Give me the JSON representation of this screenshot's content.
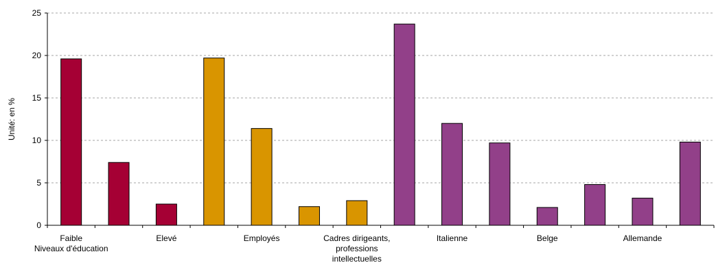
{
  "chart_data": {
    "type": "bar",
    "ylabel": "Unité: en %",
    "ylim": [
      0,
      25
    ],
    "yticks": [
      0,
      5,
      10,
      15,
      20,
      25
    ],
    "grid": true,
    "bars": [
      {
        "value": 19.6,
        "color": "#a50034"
      },
      {
        "value": 7.4,
        "color": "#a50034"
      },
      {
        "value": 2.5,
        "color": "#a50034"
      },
      {
        "value": 19.7,
        "color": "#d99500"
      },
      {
        "value": 11.4,
        "color": "#d99500"
      },
      {
        "value": 2.2,
        "color": "#d99500"
      },
      {
        "value": 2.9,
        "color": "#d99500"
      },
      {
        "value": 23.7,
        "color": "#924089"
      },
      {
        "value": 12.0,
        "color": "#924089"
      },
      {
        "value": 9.7,
        "color": "#924089"
      },
      {
        "value": 2.1,
        "color": "#924089"
      },
      {
        "value": 4.8,
        "color": "#924089"
      },
      {
        "value": 3.2,
        "color": "#924089"
      },
      {
        "value": 9.8,
        "color": "#924089"
      }
    ],
    "category_labels": [
      {
        "bar_index": 0,
        "lines": [
          "Faible",
          "Niveaux d'éducation"
        ]
      },
      {
        "bar_index": 2,
        "lines": [
          "Elevé"
        ]
      },
      {
        "bar_index": 4,
        "lines": [
          "Employés"
        ]
      },
      {
        "bar_index": 6,
        "lines": [
          "Cadres dirigeants,",
          "professions",
          "intellectuelles"
        ]
      },
      {
        "bar_index": 8,
        "lines": [
          "Italienne"
        ]
      },
      {
        "bar_index": 10,
        "lines": [
          "Belge"
        ]
      },
      {
        "bar_index": 12,
        "lines": [
          "Allemande"
        ]
      }
    ]
  }
}
